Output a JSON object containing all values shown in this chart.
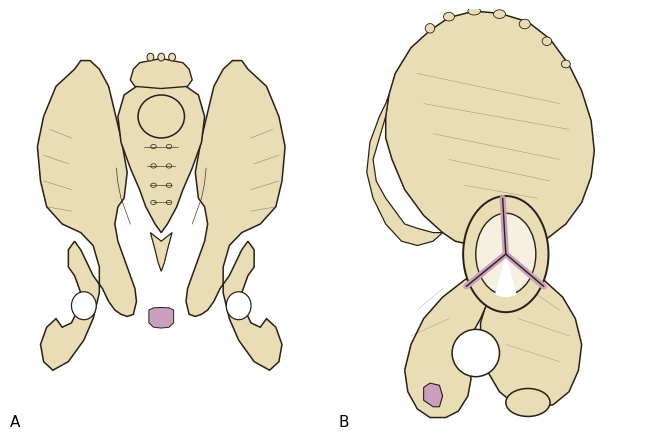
{
  "background_color": "#ffffff",
  "bone_fill": "#e8ddb5",
  "bone_outline": "#2a2015",
  "cartilage_color": "#c8a0be",
  "label_A": "A",
  "label_B": "B",
  "label_fontsize": 11,
  "fig_width": 6.45,
  "fig_height": 4.48,
  "dpi": 100
}
